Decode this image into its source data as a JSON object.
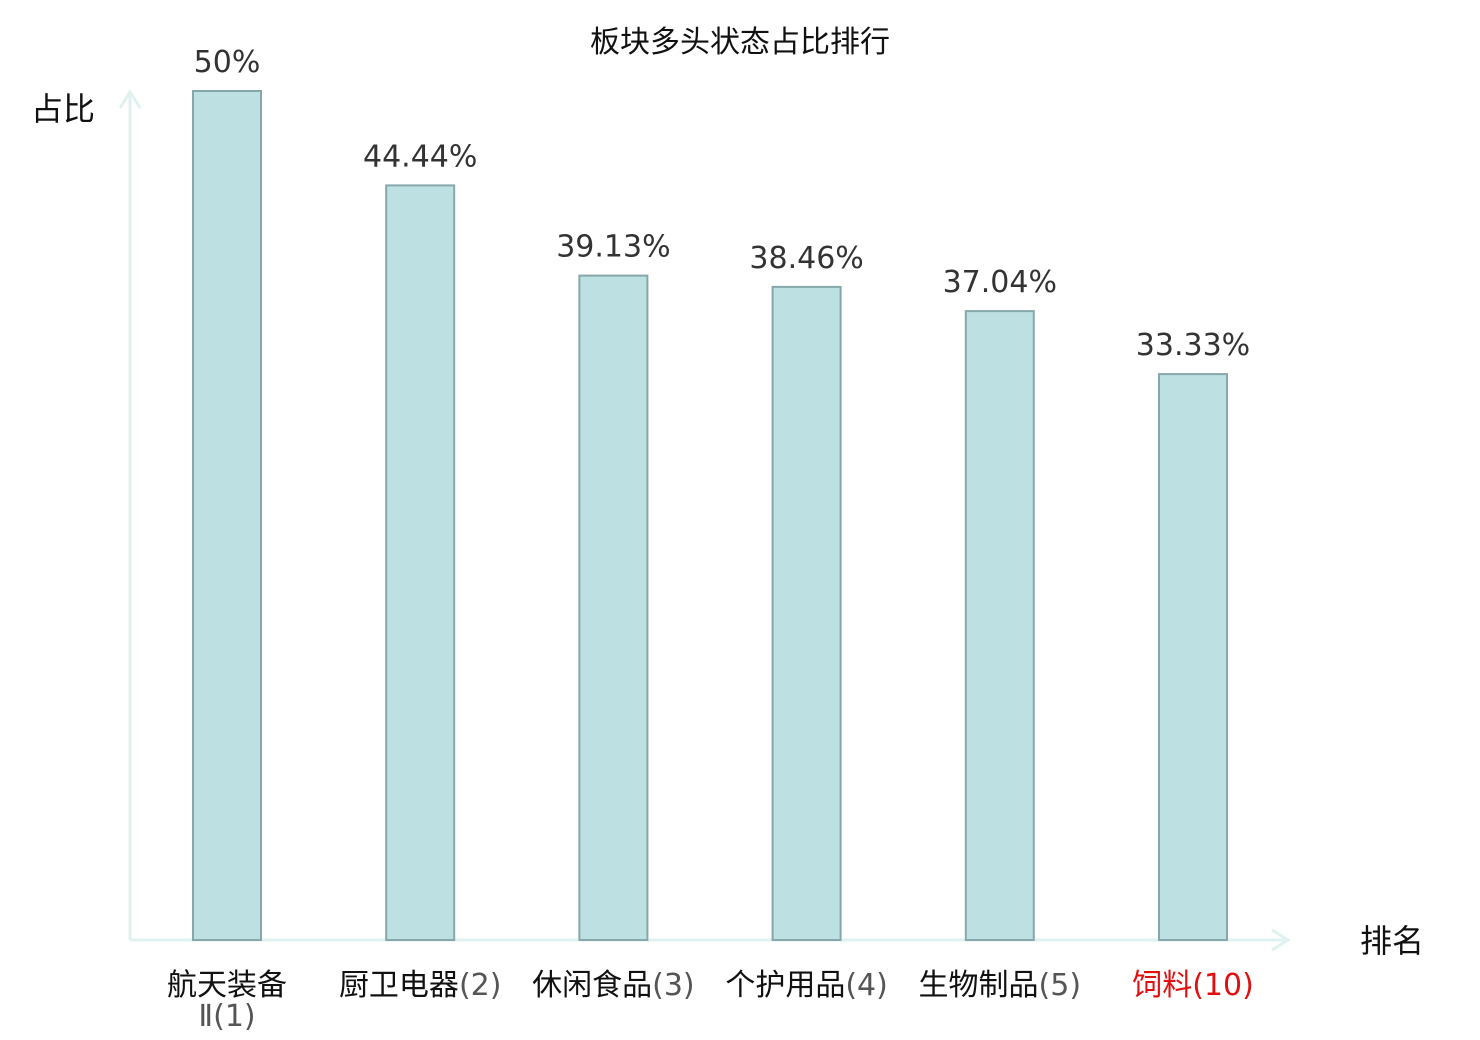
{
  "chart_data": {
    "type": "bar",
    "title": "板块多头状态占比排行",
    "xlabel": "排名",
    "ylabel": "占比",
    "ylim": [
      0,
      50
    ],
    "grid": false,
    "categories": [
      {
        "name": "航天装备Ⅱ",
        "rank": "(1)",
        "highlight": false
      },
      {
        "name": "厨卫电器",
        "rank": "(2)",
        "highlight": false
      },
      {
        "name": "休闲食品",
        "rank": "(3)",
        "highlight": false
      },
      {
        "name": "个护用品",
        "rank": "(4)",
        "highlight": false
      },
      {
        "name": "生物制品",
        "rank": "(5)",
        "highlight": false
      },
      {
        "name": "饲料",
        "rank": "(10)",
        "highlight": true
      }
    ],
    "values": [
      50,
      44.44,
      39.13,
      38.46,
      37.04,
      33.33
    ],
    "value_labels": [
      "50%",
      "44.44%",
      "39.13%",
      "38.46%",
      "37.04%",
      "33.33%"
    ]
  },
  "colors": {
    "bar_fill": "#bde0e3",
    "bar_stroke": "#87a8ab",
    "axis": "#e0f2ef",
    "highlight": "#e01010"
  }
}
